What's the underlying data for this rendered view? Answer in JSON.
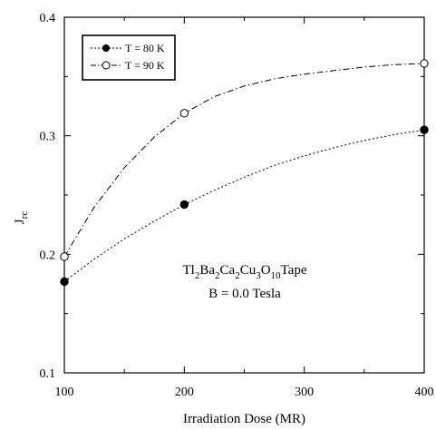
{
  "chart_data": {
    "type": "line",
    "xlabel": "Irradiation Dose (MR)",
    "ylabel_main": "J",
    "ylabel_sub": "rc",
    "xlim": [
      100,
      400
    ],
    "ylim": [
      0.1,
      0.4
    ],
    "xticks": [
      100,
      200,
      300,
      400
    ],
    "yticks": [
      0.1,
      0.2,
      0.3,
      0.4
    ],
    "xtick_labels": [
      "100",
      "200",
      "300",
      "400"
    ],
    "ytick_labels": [
      "0.1",
      "0.2",
      "0.3",
      "0.4"
    ],
    "grid": false,
    "legend_position": "top-left",
    "series": [
      {
        "name": "T = 80 K",
        "marker": "filled-circle",
        "line_style": "dotted",
        "x": [
          100,
          200,
          400
        ],
        "y": [
          0.177,
          0.242,
          0.305
        ],
        "curve_x": [
          100,
          125,
          150,
          175,
          200,
          225,
          250,
          275,
          300,
          325,
          350,
          375,
          400
        ],
        "curve_y": [
          0.177,
          0.196,
          0.213,
          0.228,
          0.242,
          0.254,
          0.265,
          0.275,
          0.283,
          0.29,
          0.296,
          0.301,
          0.305
        ]
      },
      {
        "name": "T = 90 K",
        "marker": "open-circle",
        "line_style": "dash-dot",
        "x": [
          100,
          200,
          400
        ],
        "y": [
          0.198,
          0.319,
          0.361
        ],
        "curve_x": [
          100,
          125,
          150,
          175,
          200,
          225,
          250,
          275,
          300,
          325,
          350,
          375,
          400
        ],
        "curve_y": [
          0.198,
          0.24,
          0.273,
          0.299,
          0.319,
          0.333,
          0.342,
          0.348,
          0.352,
          0.355,
          0.358,
          0.36,
          0.361
        ]
      }
    ],
    "annotation": {
      "formula": [
        {
          "t": "Tl",
          "sub": false
        },
        {
          "t": "2",
          "sub": true
        },
        {
          "t": "Ba",
          "sub": false
        },
        {
          "t": "2",
          "sub": true
        },
        {
          "t": "Ca",
          "sub": false
        },
        {
          "t": "2",
          "sub": true
        },
        {
          "t": "Cu",
          "sub": false
        },
        {
          "t": "3",
          "sub": true
        },
        {
          "t": "O",
          "sub": false
        },
        {
          "t": "10",
          "sub": true
        },
        {
          "t": "Tape",
          "sub": false
        }
      ],
      "field": "B = 0.0 Tesla"
    }
  }
}
